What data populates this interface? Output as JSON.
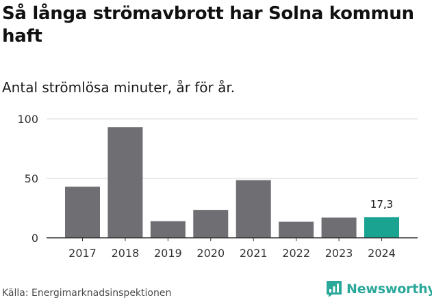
{
  "header": {
    "title": "Så långa strömavbrott har Solna kommun haft",
    "subtitle": "Antal strömlösa minuter, år för år."
  },
  "footer": {
    "source": "Källa: Energimarknadsinspektionen",
    "brand": "Newsworthy"
  },
  "colors": {
    "bar": "#6f6e73",
    "highlight": "#1aa391",
    "grid": "#d9d9d9",
    "axis": "#333333",
    "brand": "#2aa89a"
  },
  "chart_data": {
    "type": "bar",
    "title": "Så långa strömavbrott har Solna kommun haft",
    "subtitle": "Antal strömlösa minuter, år för år.",
    "categories": [
      "2017",
      "2018",
      "2019",
      "2020",
      "2021",
      "2022",
      "2023",
      "2024"
    ],
    "values": [
      43,
      93,
      14,
      23.5,
      48.5,
      13.5,
      17,
      17.3
    ],
    "highlight_index": 7,
    "highlight_label": "17,3",
    "ylim": [
      0,
      100
    ],
    "yticks": [
      0,
      50,
      100
    ],
    "grid": true,
    "legend": "none"
  }
}
